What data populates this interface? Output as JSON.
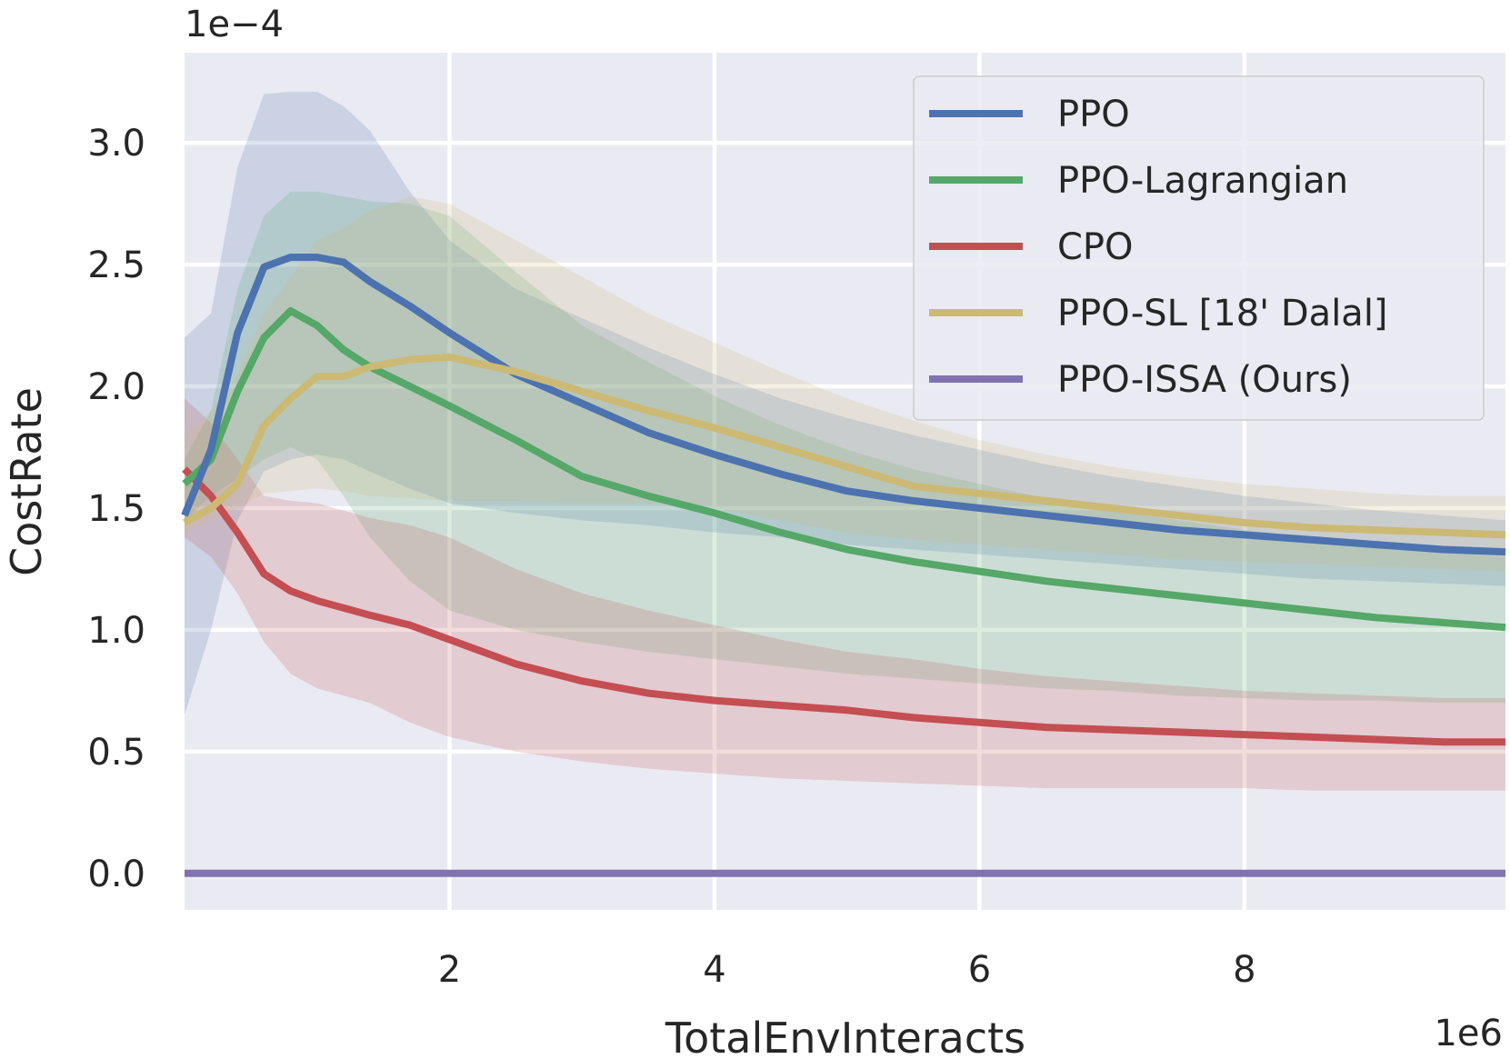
{
  "chart_data": {
    "type": "line",
    "title": "",
    "xlabel": "TotalEnvInteracts",
    "ylabel": "CostRate",
    "x_scale_label": "1e6",
    "y_scale_label": "1e−4",
    "xlim": [
      0,
      9.97
    ],
    "ylim": [
      -0.15,
      3.37
    ],
    "xticks": [
      2,
      4,
      6,
      8
    ],
    "xtick_labels": [
      "2",
      "4",
      "6",
      "8"
    ],
    "yticks": [
      0.0,
      0.5,
      1.0,
      1.5,
      2.0,
      2.5,
      3.0
    ],
    "ytick_labels": [
      "0.0",
      "0.5",
      "1.0",
      "1.5",
      "2.0",
      "2.5",
      "3.0"
    ],
    "grid": true,
    "legend_position": "top-right",
    "x": [
      0,
      0.2,
      0.4,
      0.6,
      0.8,
      1.0,
      1.2,
      1.4,
      1.7,
      2.0,
      2.5,
      3.0,
      3.5,
      4.0,
      4.5,
      5.0,
      5.5,
      6.0,
      6.5,
      7.0,
      7.5,
      8.0,
      8.5,
      9.0,
      9.5,
      9.97
    ],
    "series": [
      {
        "name": "PPO",
        "color": "#4c72b0",
        "mean": [
          1.47,
          1.74,
          2.22,
          2.49,
          2.53,
          2.53,
          2.51,
          2.43,
          2.33,
          2.22,
          2.05,
          1.93,
          1.81,
          1.72,
          1.64,
          1.57,
          1.53,
          1.5,
          1.47,
          1.44,
          1.41,
          1.39,
          1.37,
          1.35,
          1.33,
          1.32
        ],
        "upper": [
          2.2,
          2.3,
          2.9,
          3.2,
          3.21,
          3.21,
          3.15,
          3.05,
          2.8,
          2.6,
          2.4,
          2.28,
          2.16,
          2.05,
          1.95,
          1.87,
          1.8,
          1.74,
          1.68,
          1.63,
          1.59,
          1.55,
          1.52,
          1.49,
          1.47,
          1.45
        ],
        "lower": [
          0.65,
          1.0,
          1.45,
          1.65,
          1.7,
          1.72,
          1.7,
          1.65,
          1.58,
          1.52,
          1.48,
          1.45,
          1.43,
          1.4,
          1.38,
          1.35,
          1.33,
          1.31,
          1.29,
          1.27,
          1.25,
          1.23,
          1.21,
          1.2,
          1.19,
          1.18
        ]
      },
      {
        "name": "PPO-Lagrangian",
        "color": "#55a868",
        "mean": [
          1.6,
          1.7,
          1.98,
          2.2,
          2.31,
          2.25,
          2.15,
          2.08,
          2.0,
          1.92,
          1.78,
          1.63,
          1.55,
          1.48,
          1.4,
          1.33,
          1.28,
          1.24,
          1.2,
          1.17,
          1.14,
          1.11,
          1.08,
          1.05,
          1.03,
          1.01
        ],
        "upper": [
          1.7,
          1.9,
          2.4,
          2.7,
          2.8,
          2.8,
          2.78,
          2.76,
          2.75,
          2.7,
          2.47,
          2.25,
          2.1,
          1.96,
          1.84,
          1.74,
          1.66,
          1.6,
          1.54,
          1.49,
          1.45,
          1.41,
          1.38,
          1.35,
          1.32,
          1.3
        ],
        "lower": [
          1.45,
          1.55,
          1.62,
          1.7,
          1.75,
          1.7,
          1.55,
          1.38,
          1.2,
          1.08,
          1.0,
          0.95,
          0.91,
          0.88,
          0.85,
          0.82,
          0.8,
          0.78,
          0.76,
          0.75,
          0.73,
          0.72,
          0.71,
          0.71,
          0.7,
          0.7
        ]
      },
      {
        "name": "CPO",
        "color": "#c44e52",
        "mean": [
          1.66,
          1.55,
          1.4,
          1.23,
          1.16,
          1.12,
          1.09,
          1.06,
          1.02,
          0.96,
          0.86,
          0.79,
          0.74,
          0.71,
          0.69,
          0.67,
          0.64,
          0.62,
          0.6,
          0.59,
          0.58,
          0.57,
          0.56,
          0.55,
          0.54,
          0.54
        ],
        "upper": [
          1.95,
          1.85,
          1.7,
          1.55,
          1.53,
          1.52,
          1.49,
          1.46,
          1.43,
          1.38,
          1.25,
          1.15,
          1.08,
          1.02,
          0.96,
          0.91,
          0.88,
          0.84,
          0.81,
          0.79,
          0.77,
          0.75,
          0.74,
          0.73,
          0.72,
          0.72
        ],
        "lower": [
          1.38,
          1.3,
          1.15,
          0.95,
          0.82,
          0.76,
          0.73,
          0.7,
          0.62,
          0.56,
          0.5,
          0.46,
          0.43,
          0.41,
          0.39,
          0.38,
          0.37,
          0.36,
          0.35,
          0.35,
          0.35,
          0.35,
          0.34,
          0.34,
          0.34,
          0.34
        ]
      },
      {
        "name": "PPO-SL [18' Dalal]",
        "color": "#ccb974",
        "mean": [
          1.44,
          1.5,
          1.6,
          1.84,
          1.95,
          2.04,
          2.04,
          2.08,
          2.11,
          2.12,
          2.06,
          1.98,
          1.9,
          1.83,
          1.75,
          1.67,
          1.59,
          1.56,
          1.53,
          1.5,
          1.47,
          1.44,
          1.42,
          1.41,
          1.4,
          1.39
        ],
        "upper": [
          1.8,
          1.9,
          2.05,
          2.3,
          2.45,
          2.6,
          2.65,
          2.72,
          2.78,
          2.75,
          2.6,
          2.45,
          2.3,
          2.18,
          2.06,
          1.95,
          1.86,
          1.78,
          1.72,
          1.67,
          1.63,
          1.6,
          1.58,
          1.56,
          1.55,
          1.55
        ],
        "lower": [
          1.4,
          1.45,
          1.5,
          1.56,
          1.57,
          1.58,
          1.57,
          1.55,
          1.54,
          1.53,
          1.53,
          1.52,
          1.52,
          1.5,
          1.45,
          1.4,
          1.37,
          1.35,
          1.33,
          1.31,
          1.29,
          1.28,
          1.27,
          1.26,
          1.25,
          1.24
        ]
      },
      {
        "name": "PPO-ISSA (Ours)",
        "color": "#8172b2",
        "mean": [
          0,
          0,
          0,
          0,
          0,
          0,
          0,
          0,
          0,
          0,
          0,
          0,
          0,
          0,
          0,
          0,
          0,
          0,
          0,
          0,
          0,
          0,
          0,
          0,
          0,
          0
        ],
        "upper": null,
        "lower": null
      }
    ]
  }
}
